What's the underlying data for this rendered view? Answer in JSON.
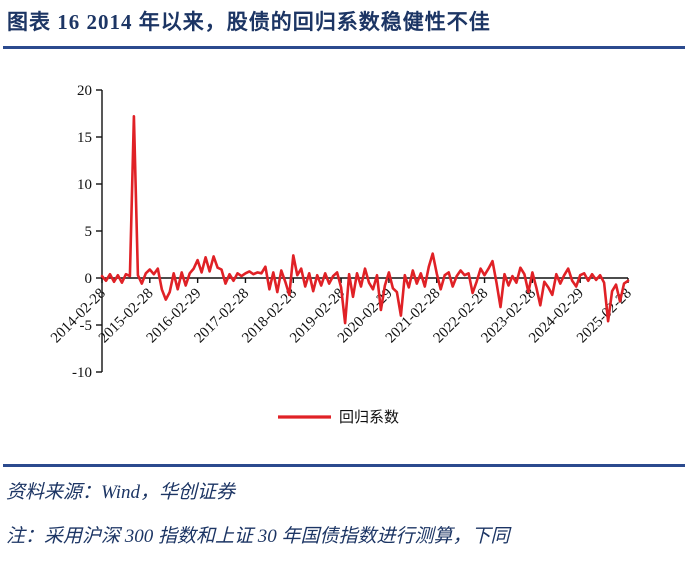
{
  "header": {
    "title": "图表 16  2014 年以来，股债的回归系数稳健性不佳"
  },
  "footer": {
    "source": "资料来源：Wind，华创证券",
    "note": "注：采用沪深 300 指数和上证 30 年国债指数进行测算，下同"
  },
  "colors": {
    "accent_navy": "#1c3564",
    "divider_navy": "#2b4a8e",
    "line_red": "#e02126",
    "axis_black": "#111111"
  },
  "chart_data": {
    "type": "line",
    "title": "",
    "xlabel": "",
    "ylabel": "",
    "grid": false,
    "legend_position": "bottom",
    "ylim": [
      -10,
      20
    ],
    "y_ticks": [
      20,
      15,
      10,
      5,
      0,
      -5,
      -10
    ],
    "x_start_month": "2014-02",
    "x_interval": "monthly",
    "x_tick_every": 12,
    "x_tick_labels": [
      "2014-02-28",
      "2015-02-28",
      "2016-02-29",
      "2017-02-28",
      "2018-02-28",
      "2019-02-28",
      "2020-02-29",
      "2021-02-28",
      "2022-02-28",
      "2023-02-28",
      "2024-02-29",
      "2025-02-28"
    ],
    "series": [
      {
        "name": "回归系数",
        "color": "#e02126",
        "values": [
          0.2,
          -0.3,
          0.4,
          -0.4,
          0.3,
          -0.5,
          0.4,
          0.2,
          17.2,
          0.3,
          -0.6,
          0.5,
          0.9,
          0.4,
          1.0,
          -1.2,
          -2.3,
          -1.5,
          0.5,
          -1.2,
          0.6,
          -0.8,
          0.5,
          1.0,
          1.9,
          0.6,
          2.2,
          0.7,
          2.3,
          1.1,
          0.9,
          -0.6,
          0.4,
          -0.3,
          0.5,
          0.2,
          0.5,
          0.7,
          0.4,
          0.6,
          0.5,
          1.2,
          -1.2,
          0.6,
          -1.5,
          0.8,
          -0.4,
          -1.8,
          2.4,
          0.3,
          1.0,
          -0.9,
          0.5,
          -1.4,
          0.3,
          -0.8,
          0.5,
          -0.6,
          0.2,
          0.6,
          -1.0,
          -4.8,
          0.4,
          -2.0,
          0.5,
          -0.9,
          1.0,
          -0.5,
          -1.2,
          0.3,
          -3.4,
          -0.8,
          0.6,
          -1.1,
          -1.5,
          -4.0,
          0.3,
          -1.0,
          0.8,
          -0.6,
          0.5,
          -0.9,
          1.2,
          2.6,
          0.5,
          -1.2,
          0.3,
          0.6,
          -0.9,
          0.2,
          0.8,
          0.3,
          0.5,
          -1.6,
          -0.4,
          1.0,
          0.3,
          1.0,
          1.8,
          -0.5,
          -3.1,
          0.4,
          -0.8,
          0.2,
          -0.5,
          1.1,
          0.4,
          -1.5,
          0.6,
          -1.0,
          -2.9,
          -0.4,
          -1.0,
          -1.8,
          0.4,
          -0.6,
          0.3,
          1.0,
          -0.3,
          -0.9,
          0.3,
          0.5,
          -0.3,
          0.4,
          -0.2,
          0.3,
          -0.5,
          -4.6,
          -1.4,
          -0.7,
          -2.5,
          -0.6,
          -0.3
        ]
      }
    ]
  }
}
